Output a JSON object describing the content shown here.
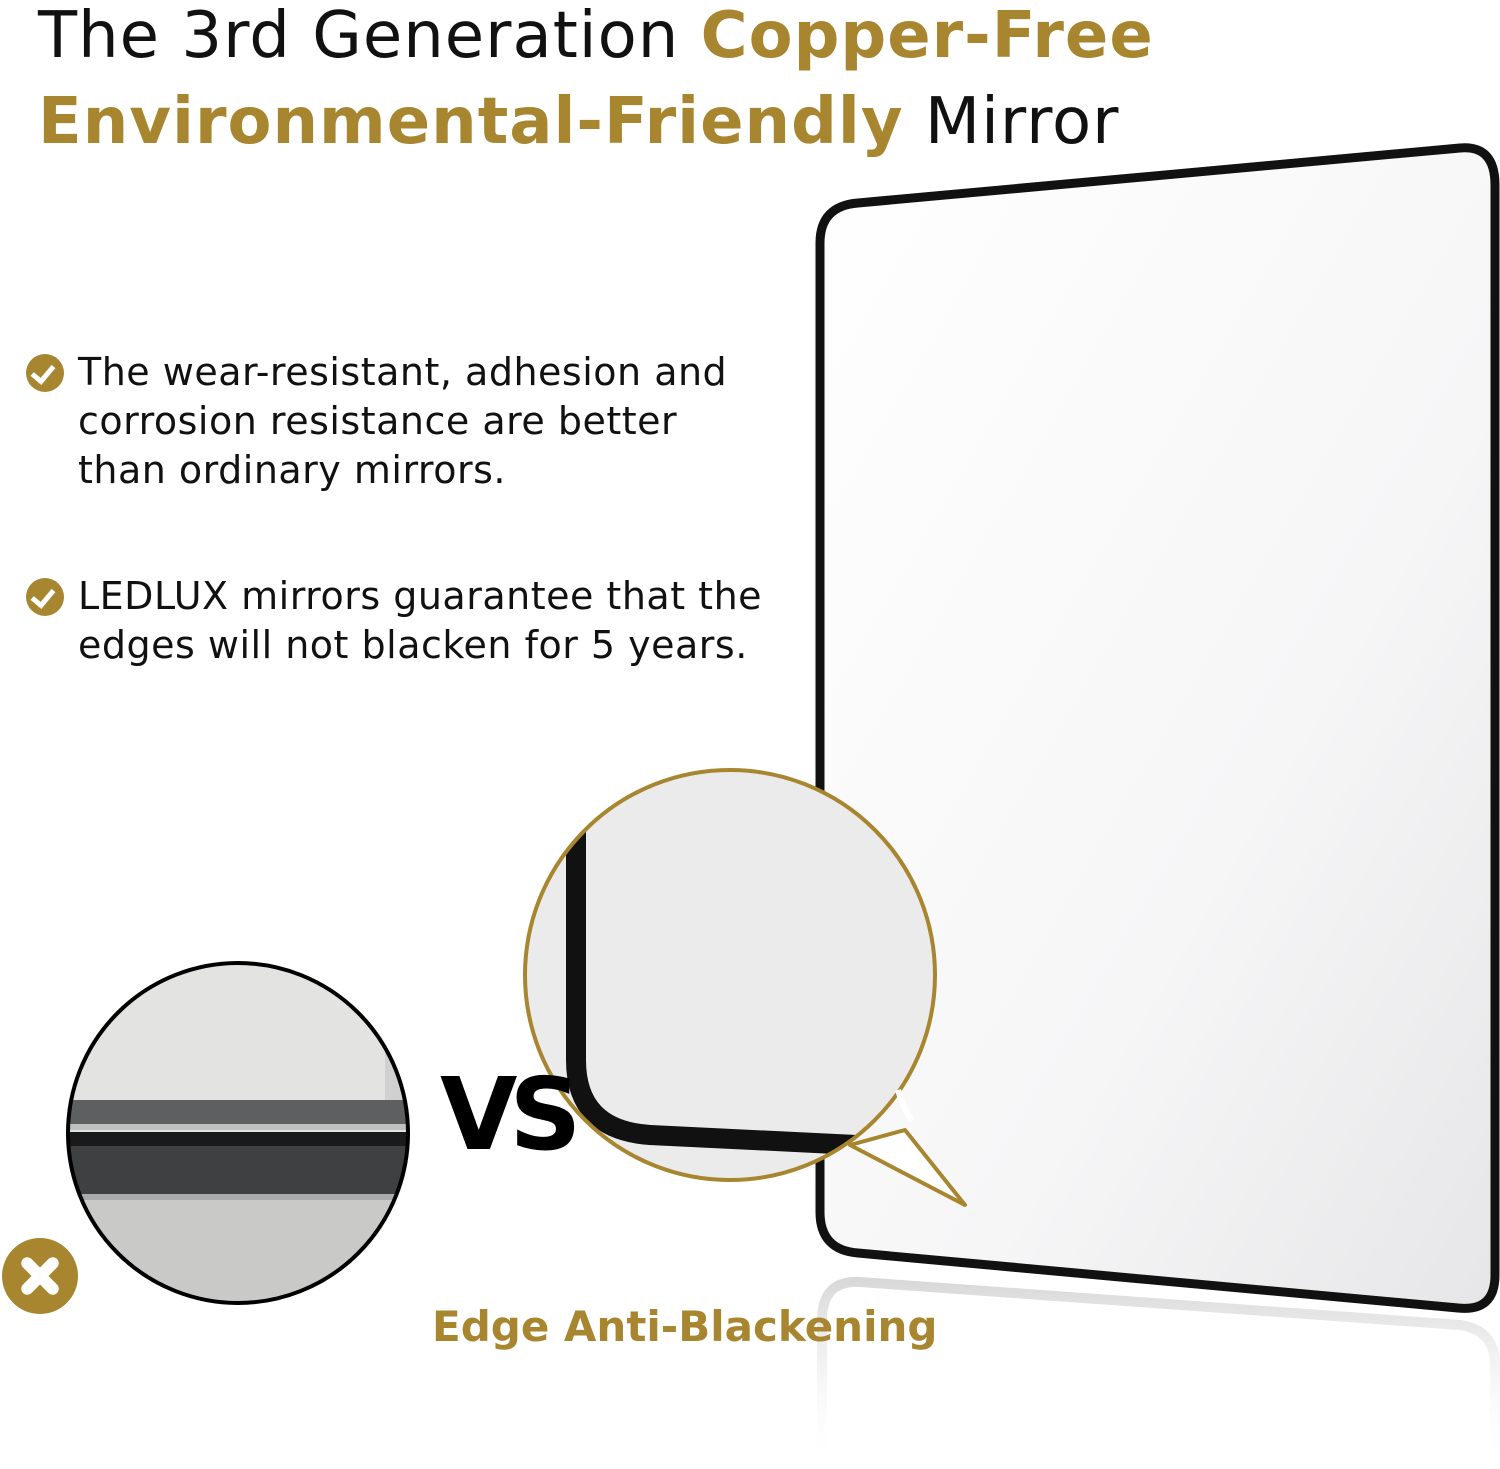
{
  "headline": {
    "line1_plain": "The 3rd Generation ",
    "line1_accent": "Copper-Free",
    "line2_accent": "Environmental-Friendly",
    "line2_plain": " Mirror"
  },
  "features": [
    {
      "icon": "check-circle-icon",
      "text": "The wear-resistant, adhesion and corrosion resistance are better than ordinary mirrors."
    },
    {
      "icon": "check-circle-icon",
      "text": "LEDLUX mirrors guarantee that the edges will not blacken for 5 years."
    }
  ],
  "comparison": {
    "vs_label": "VS",
    "bad_icon": "x-circle-icon",
    "caption": "Edge Anti-Blackening"
  },
  "colors": {
    "accent": "#A8852F",
    "frame": "#111111",
    "text": "#111111"
  }
}
